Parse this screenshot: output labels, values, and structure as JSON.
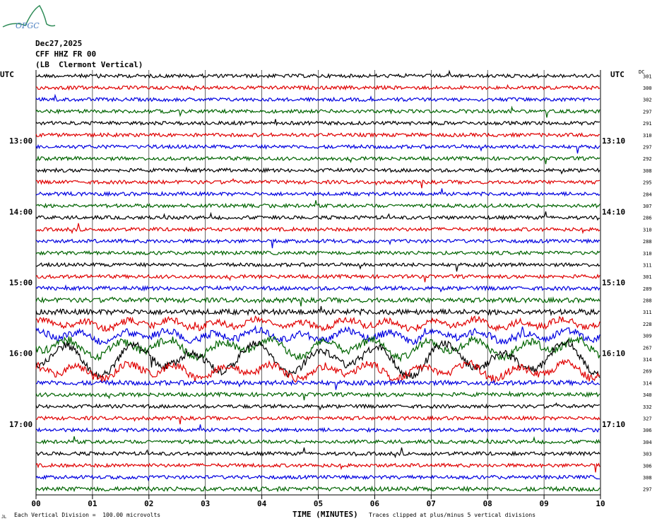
{
  "logo": {
    "text": "OPGC",
    "color": "#2e8b57"
  },
  "header": {
    "date": "Dec27,2025",
    "station": "CFF HHZ FR 00",
    "description": "(LB  Clermont Vertical)"
  },
  "left_axis_label": "UTC",
  "right_axis_label": "UTC",
  "dc_label": "DC",
  "x_axis_title": "TIME (MINUTES)",
  "footer": {
    "scale_note": "Each Vertical Division =  100.00 microvolts",
    "clip_note": "Traces clipped at plus/minus 5 vertical divisions",
    "corner_mark": "JL"
  },
  "chart_data": {
    "type": "line",
    "title": "",
    "xlabel": "TIME (MINUTES)",
    "xlim": [
      0,
      10
    ],
    "x_ticks": [
      "00",
      "01",
      "02",
      "03",
      "04",
      "05",
      "06",
      "07",
      "08",
      "09",
      "10"
    ],
    "rows_per_hour": 6,
    "minutes_per_row": 10,
    "left_hour_labels": [
      {
        "label": "13:00",
        "row": 6
      },
      {
        "label": "14:00",
        "row": 12
      },
      {
        "label": "15:00",
        "row": 18
      },
      {
        "label": "16:00",
        "row": 24
      },
      {
        "label": "17:00",
        "row": 30
      }
    ],
    "right_hour_labels": [
      {
        "label": "13:10",
        "row": 6
      },
      {
        "label": "14:10",
        "row": 12
      },
      {
        "label": "15:10",
        "row": 18
      },
      {
        "label": "16:10",
        "row": 24
      },
      {
        "label": "17:10",
        "row": 30
      }
    ],
    "trace_colors": [
      "#000000",
      "#e00000",
      "#0000e0",
      "#006400"
    ],
    "dc_offsets": [
      301,
      300,
      302,
      297,
      291,
      310,
      297,
      292,
      308,
      295,
      284,
      307,
      286,
      310,
      288,
      310,
      311,
      301,
      289,
      288,
      311,
      228,
      309,
      267,
      314,
      269,
      314,
      340,
      332,
      327,
      306,
      304,
      303,
      306,
      308,
      297
    ],
    "trace_activity": [
      1,
      1,
      1,
      1,
      1,
      1,
      1,
      1,
      1,
      1,
      1,
      1,
      1,
      1,
      1,
      1,
      1,
      1,
      1.1,
      1.3,
      1.5,
      1.8,
      2.0,
      3.5,
      6.0,
      3.0,
      1.3,
      1.1,
      1,
      1,
      1,
      1,
      1,
      1,
      1,
      1.2
    ],
    "grid": true
  }
}
